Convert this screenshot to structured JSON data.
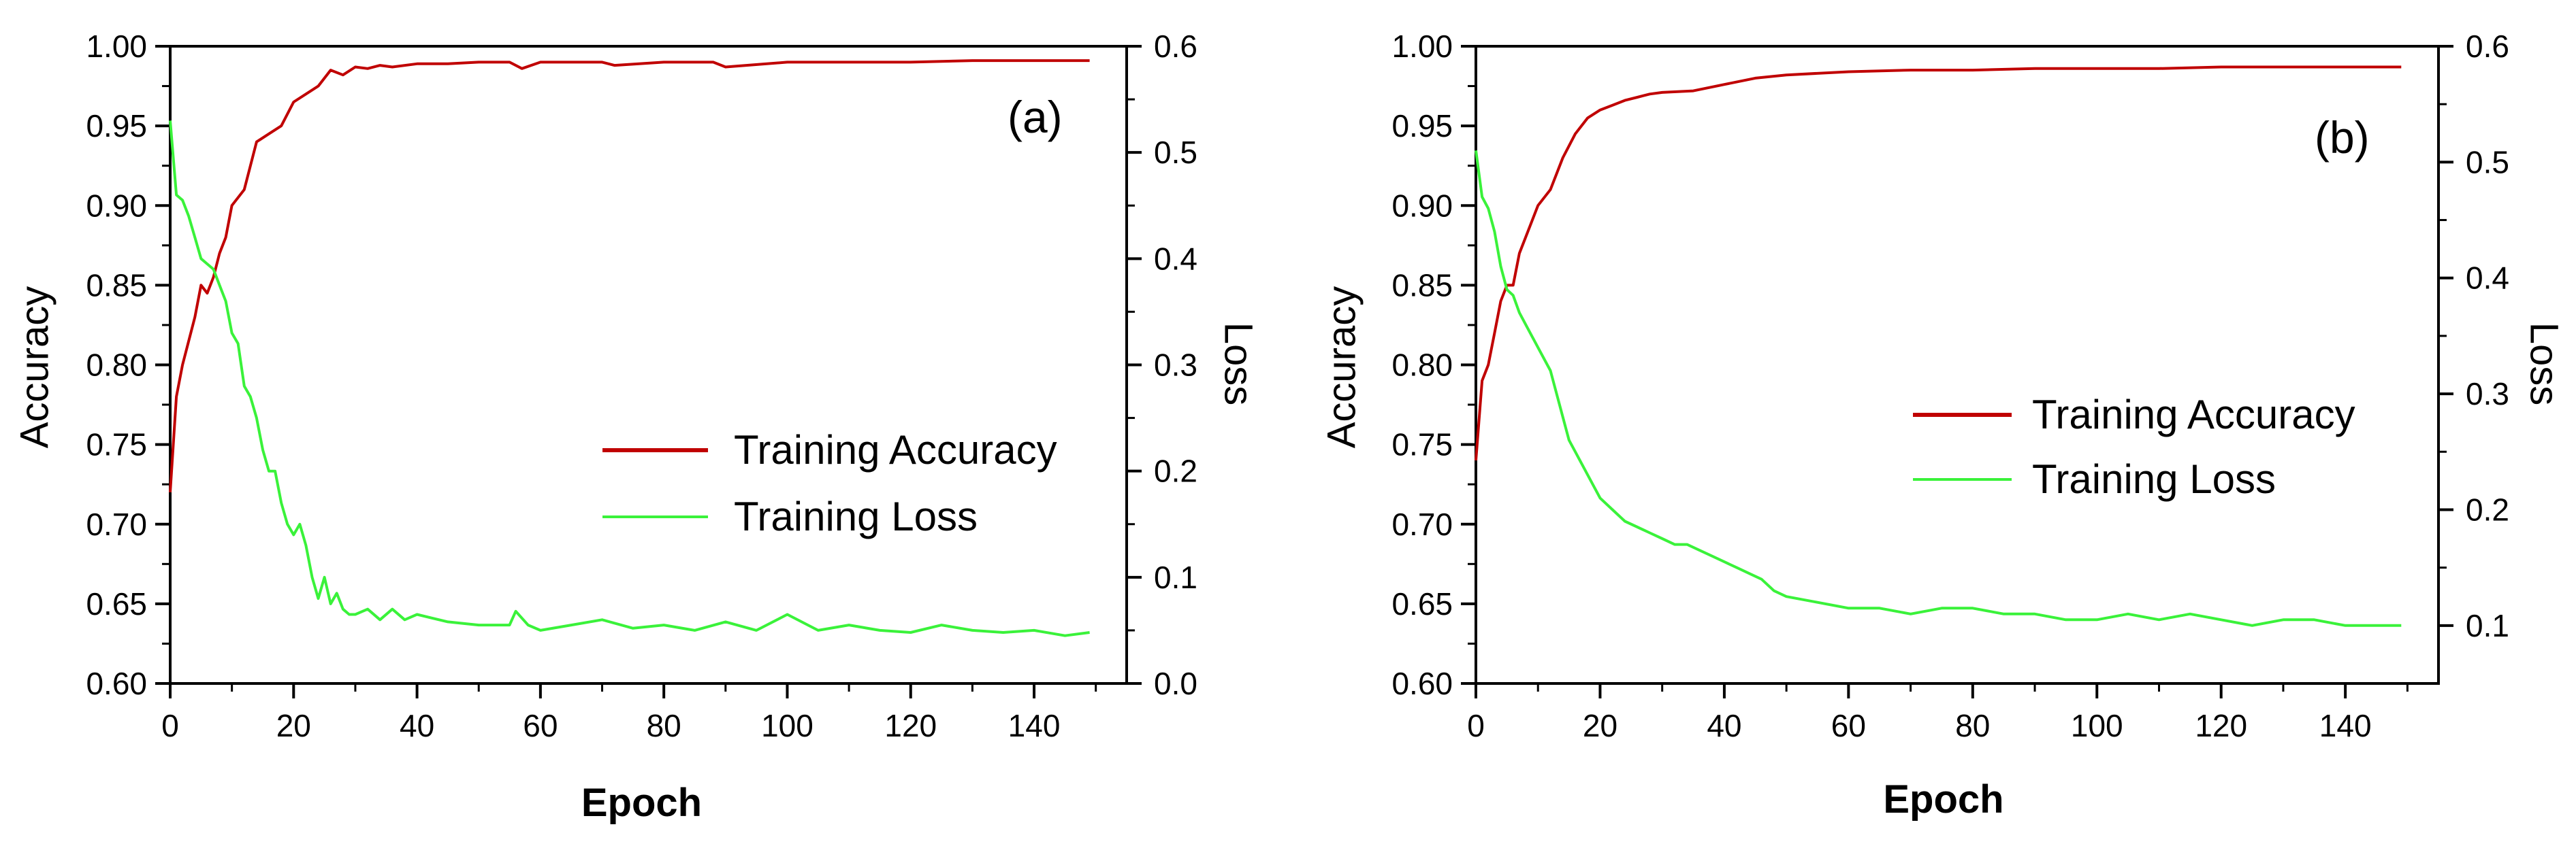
{
  "colors": {
    "accuracy": "#c00000",
    "loss": "#3af23a",
    "axis": "#000000"
  },
  "chart_data": [
    {
      "type": "line",
      "panel_label": "(a)",
      "xlabel": "Epoch",
      "ylabel_left": "Accuracy",
      "ylabel_right": "Loss",
      "xlim": [
        0,
        155
      ],
      "ylim_left": [
        0.6,
        1.0
      ],
      "ylim_right": [
        0.0,
        0.6
      ],
      "x_ticks": [
        0,
        20,
        40,
        60,
        80,
        100,
        120,
        140
      ],
      "x_tick_labels": [
        "0",
        "20",
        "40",
        "60",
        "80",
        "100",
        "120",
        "140"
      ],
      "y_left_ticks": [
        0.6,
        0.65,
        0.7,
        0.75,
        0.8,
        0.85,
        0.9,
        0.95,
        1.0
      ],
      "y_left_tick_labels": [
        "0.60",
        "0.65",
        "0.70",
        "0.75",
        "0.80",
        "0.85",
        "0.90",
        "0.95",
        "1.00"
      ],
      "y_right_ticks": [
        0.0,
        0.1,
        0.2,
        0.3,
        0.4,
        0.5,
        0.6
      ],
      "y_right_tick_labels": [
        "0.0",
        "0.1",
        "0.2",
        "0.3",
        "0.4",
        "0.5",
        "0.6"
      ],
      "legend": [
        "Training Accuracy",
        "Training Loss"
      ],
      "series": [
        {
          "name": "Training Accuracy",
          "axis": "left",
          "color": "#c00000",
          "x": [
            0,
            1,
            2,
            3,
            4,
            5,
            6,
            7,
            8,
            9,
            10,
            12,
            14,
            16,
            18,
            20,
            22,
            24,
            26,
            28,
            30,
            32,
            34,
            36,
            40,
            45,
            50,
            55,
            57,
            60,
            70,
            72,
            80,
            88,
            90,
            100,
            110,
            120,
            130,
            140,
            149
          ],
          "values": [
            0.72,
            0.78,
            0.8,
            0.815,
            0.83,
            0.85,
            0.845,
            0.855,
            0.87,
            0.88,
            0.9,
            0.91,
            0.94,
            0.945,
            0.95,
            0.965,
            0.97,
            0.975,
            0.985,
            0.982,
            0.987,
            0.986,
            0.988,
            0.987,
            0.989,
            0.989,
            0.99,
            0.99,
            0.986,
            0.99,
            0.99,
            0.988,
            0.99,
            0.99,
            0.987,
            0.99,
            0.99,
            0.99,
            0.991,
            0.991,
            0.991
          ]
        },
        {
          "name": "Training Loss",
          "axis": "right",
          "color": "#3af23a",
          "x": [
            0,
            1,
            2,
            3,
            4,
            5,
            6,
            7,
            8,
            9,
            10,
            11,
            12,
            13,
            14,
            15,
            16,
            17,
            18,
            19,
            20,
            21,
            22,
            23,
            24,
            25,
            26,
            27,
            28,
            29,
            30,
            32,
            34,
            36,
            38,
            40,
            45,
            50,
            55,
            56,
            58,
            60,
            65,
            70,
            75,
            80,
            85,
            90,
            95,
            100,
            105,
            110,
            115,
            120,
            125,
            130,
            135,
            140,
            145,
            149
          ],
          "values": [
            0.53,
            0.46,
            0.455,
            0.44,
            0.42,
            0.4,
            0.395,
            0.39,
            0.375,
            0.36,
            0.33,
            0.32,
            0.28,
            0.27,
            0.25,
            0.22,
            0.2,
            0.2,
            0.17,
            0.15,
            0.14,
            0.15,
            0.13,
            0.1,
            0.08,
            0.1,
            0.075,
            0.085,
            0.07,
            0.065,
            0.065,
            0.07,
            0.06,
            0.07,
            0.06,
            0.065,
            0.058,
            0.055,
            0.055,
            0.068,
            0.055,
            0.05,
            0.055,
            0.06,
            0.052,
            0.055,
            0.05,
            0.058,
            0.05,
            0.065,
            0.05,
            0.055,
            0.05,
            0.048,
            0.055,
            0.05,
            0.048,
            0.05,
            0.045,
            0.048
          ]
        }
      ]
    },
    {
      "type": "line",
      "panel_label": "(b)",
      "xlabel": "Epoch",
      "ylabel_left": "Accuracy",
      "ylabel_right": "Loss",
      "xlim": [
        0,
        155
      ],
      "ylim_left": [
        0.6,
        1.0
      ],
      "ylim_right": [
        0.05,
        0.6
      ],
      "x_ticks": [
        0,
        20,
        40,
        60,
        80,
        100,
        120,
        140
      ],
      "x_tick_labels": [
        "0",
        "20",
        "40",
        "60",
        "80",
        "100",
        "120",
        "140"
      ],
      "y_left_ticks": [
        0.6,
        0.65,
        0.7,
        0.75,
        0.8,
        0.85,
        0.9,
        0.95,
        1.0
      ],
      "y_left_tick_labels": [
        "0.60",
        "0.65",
        "0.70",
        "0.75",
        "0.80",
        "0.85",
        "0.90",
        "0.95",
        "1.00"
      ],
      "y_right_ticks": [
        0.1,
        0.2,
        0.3,
        0.4,
        0.5,
        0.6
      ],
      "y_right_tick_labels": [
        "0.1",
        "0.2",
        "0.3",
        "0.4",
        "0.5",
        "0.6"
      ],
      "legend": [
        "Training Accuracy",
        "Training Loss"
      ],
      "series": [
        {
          "name": "Training Accuracy",
          "axis": "left",
          "color": "#c00000",
          "x": [
            0,
            1,
            2,
            3,
            4,
            5,
            6,
            7,
            8,
            9,
            10,
            12,
            14,
            16,
            18,
            20,
            22,
            24,
            26,
            28,
            30,
            35,
            40,
            45,
            50,
            60,
            70,
            80,
            90,
            100,
            110,
            120,
            130,
            140,
            149
          ],
          "values": [
            0.74,
            0.79,
            0.8,
            0.82,
            0.84,
            0.85,
            0.85,
            0.87,
            0.88,
            0.89,
            0.9,
            0.91,
            0.93,
            0.945,
            0.955,
            0.96,
            0.963,
            0.966,
            0.968,
            0.97,
            0.971,
            0.972,
            0.976,
            0.98,
            0.982,
            0.984,
            0.985,
            0.985,
            0.986,
            0.986,
            0.986,
            0.987,
            0.987,
            0.987,
            0.987
          ]
        },
        {
          "name": "Training Loss",
          "axis": "right",
          "color": "#3af23a",
          "x": [
            0,
            1,
            2,
            3,
            4,
            5,
            6,
            7,
            8,
            9,
            10,
            12,
            14,
            15,
            16,
            18,
            20,
            22,
            24,
            26,
            28,
            30,
            32,
            34,
            36,
            38,
            40,
            42,
            44,
            46,
            48,
            50,
            55,
            60,
            65,
            70,
            75,
            80,
            85,
            90,
            95,
            100,
            105,
            110,
            115,
            120,
            125,
            130,
            135,
            140,
            145,
            149
          ],
          "values": [
            0.51,
            0.47,
            0.46,
            0.44,
            0.41,
            0.39,
            0.385,
            0.37,
            0.36,
            0.35,
            0.34,
            0.32,
            0.28,
            0.26,
            0.25,
            0.23,
            0.21,
            0.2,
            0.19,
            0.185,
            0.18,
            0.175,
            0.17,
            0.17,
            0.165,
            0.16,
            0.155,
            0.15,
            0.145,
            0.14,
            0.13,
            0.125,
            0.12,
            0.115,
            0.115,
            0.11,
            0.115,
            0.115,
            0.11,
            0.11,
            0.105,
            0.105,
            0.11,
            0.105,
            0.11,
            0.105,
            0.1,
            0.105,
            0.105,
            0.1,
            0.1,
            0.1
          ]
        }
      ]
    }
  ]
}
